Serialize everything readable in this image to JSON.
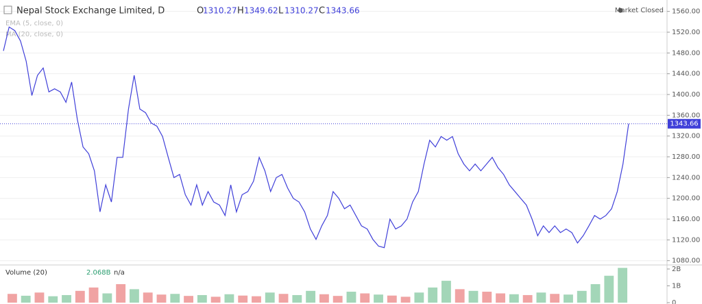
{
  "chart_data": [
    {
      "type": "line",
      "title": "Nepal Stock Exchange Limited, D",
      "ohlc": {
        "o_label": "O",
        "open": 1310.27,
        "h_label": "H",
        "high": 1349.62,
        "l_label": "L",
        "low": 1310.27,
        "c_label": "C",
        "close": 1343.66
      },
      "status": "Market Closed",
      "indicators": [
        "EMA (5, close, 0)",
        "MA (20, close, 0)"
      ],
      "series": [
        {
          "color": "#3f3fd9",
          "values": [
            1484,
            1530,
            1523,
            1503,
            1464,
            1398,
            1437,
            1451,
            1405,
            1411,
            1405,
            1385,
            1424,
            1352,
            1299,
            1286,
            1253,
            1174,
            1226,
            1193,
            1279,
            1279,
            1372,
            1437,
            1372,
            1365,
            1345,
            1339,
            1319,
            1279,
            1240,
            1246,
            1207,
            1187,
            1226,
            1187,
            1213,
            1193,
            1187,
            1167,
            1226,
            1174,
            1207,
            1213,
            1233,
            1279,
            1253,
            1213,
            1240,
            1246,
            1220,
            1200,
            1193,
            1174,
            1141,
            1121,
            1147,
            1167,
            1213,
            1200,
            1180,
            1187,
            1167,
            1147,
            1141,
            1121,
            1108,
            1105,
            1160,
            1141,
            1147,
            1160,
            1193,
            1213,
            1266,
            1312,
            1299,
            1319,
            1312,
            1319,
            1286,
            1266,
            1253,
            1266,
            1253,
            1266,
            1279,
            1259,
            1246,
            1226,
            1213,
            1200,
            1187,
            1160,
            1128,
            1147,
            1134,
            1147,
            1134,
            1141,
            1134,
            1114,
            1128,
            1147,
            1167,
            1160,
            1167,
            1180,
            1213,
            1266,
            1343.66
          ]
        }
      ],
      "ylim": [
        1073,
        1582
      ],
      "yticks": [
        {
          "value": 1080,
          "label": "1080.00"
        },
        {
          "value": 1120,
          "label": "1120.00"
        },
        {
          "value": 1160,
          "label": "1160.00"
        },
        {
          "value": 1200,
          "label": "1200.00"
        },
        {
          "value": 1240,
          "label": "1240.00"
        },
        {
          "value": 1280,
          "label": "1280.00"
        },
        {
          "value": 1320,
          "label": "1320.00"
        },
        {
          "value": 1360,
          "label": "1360.00"
        },
        {
          "value": 1400,
          "label": "1400.00"
        },
        {
          "value": 1440,
          "label": "1440.00"
        },
        {
          "value": 1480,
          "label": "1480.00"
        },
        {
          "value": 1520,
          "label": "1520.00"
        },
        {
          "value": 1560,
          "label": "1560.00"
        }
      ],
      "grid": true
    },
    {
      "type": "bar",
      "title": "Volume (20)",
      "legend_value": "2.068B",
      "legend_extra": "n/a",
      "values": [
        520000000,
        410000000,
        600000000,
        380000000,
        450000000,
        700000000,
        900000000,
        550000000,
        1100000000,
        800000000,
        600000000,
        480000000,
        520000000,
        400000000,
        450000000,
        350000000,
        500000000,
        420000000,
        380000000,
        600000000,
        520000000,
        450000000,
        700000000,
        500000000,
        400000000,
        650000000,
        550000000,
        480000000,
        420000000,
        350000000,
        600000000,
        900000000,
        1300000000,
        800000000,
        700000000,
        650000000,
        550000000,
        500000000,
        450000000,
        600000000,
        520000000,
        480000000,
        700000000,
        1100000000,
        1600000000,
        2068000000
      ],
      "colors": [
        "#f0a3a3",
        "#a3d6b8",
        "#f0a3a3",
        "#a3d6b8",
        "#a3d6b8",
        "#f0a3a3",
        "#f0a3a3",
        "#a3d6b8",
        "#f0a3a3",
        "#a3d6b8",
        "#f0a3a3",
        "#f0a3a3",
        "#a3d6b8",
        "#f0a3a3",
        "#a3d6b8",
        "#f0a3a3",
        "#a3d6b8",
        "#f0a3a3",
        "#f0a3a3",
        "#a3d6b8",
        "#f0a3a3",
        "#a3d6b8",
        "#a3d6b8",
        "#f0a3a3",
        "#f0a3a3",
        "#a3d6b8",
        "#f0a3a3",
        "#a3d6b8",
        "#f0a3a3",
        "#f0a3a3",
        "#a3d6b8",
        "#a3d6b8",
        "#a3d6b8",
        "#f0a3a3",
        "#a3d6b8",
        "#f0a3a3",
        "#f0a3a3",
        "#a3d6b8",
        "#f0a3a3",
        "#a3d6b8",
        "#f0a3a3",
        "#a3d6b8",
        "#a3d6b8",
        "#a3d6b8",
        "#a3d6b8",
        "#a3d6b8"
      ],
      "ylim": [
        0,
        2200000000
      ],
      "yticks": [
        0,
        {
          "value": 1000000000,
          "label": "1B"
        },
        {
          "value": 2000000000,
          "label": "2B"
        }
      ]
    }
  ]
}
